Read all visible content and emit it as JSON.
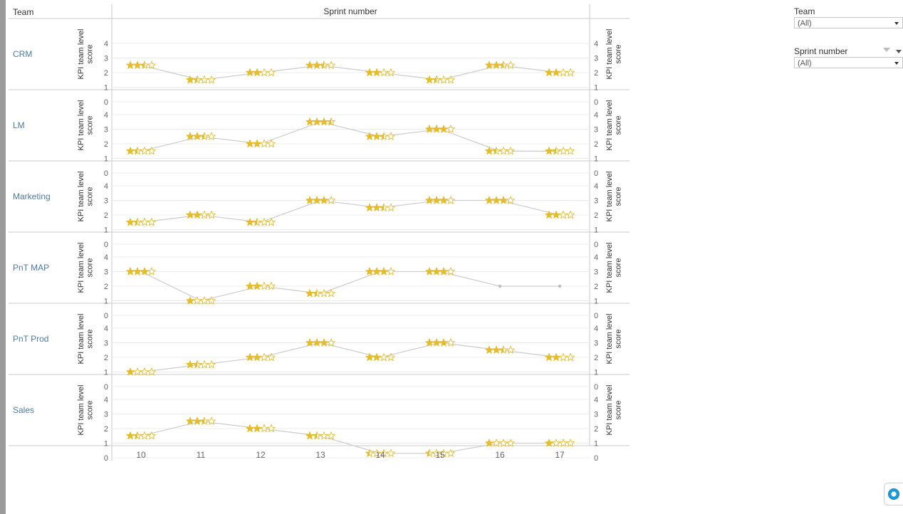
{
  "header": {
    "team_column": "Team",
    "sprint_column": "Sprint number"
  },
  "filters": {
    "team": {
      "title": "Team",
      "value": "(All)"
    },
    "sprint": {
      "title": "Sprint number",
      "value": "(All)"
    }
  },
  "icons": {
    "filter": "funnel-icon",
    "dropdown": "chevron-down-icon",
    "assistant": "assistant-icon"
  },
  "colors": {
    "star": "#e6bc2f",
    "line": "#cfcfcf",
    "team_label": "#4e79a7",
    "grid": "#ececec",
    "divider": "#c8c8c8"
  },
  "chart_data": {
    "type": "line",
    "mark": "star-rating",
    "max_stars": 4,
    "x": [
      10,
      11,
      12,
      13,
      14,
      15,
      16,
      17
    ],
    "xlabel": "Sprint number",
    "ylabel": "KPI team level score",
    "ylim": [
      0,
      4
    ],
    "yticks": [
      0,
      1,
      2,
      3,
      4
    ],
    "grid": true,
    "dual_axis": true,
    "series": [
      {
        "name": "CRM",
        "values": [
          2.5,
          1.5,
          2.0,
          2.5,
          2.0,
          1.5,
          2.5,
          2.0
        ]
      },
      {
        "name": "LM",
        "values": [
          1.5,
          2.5,
          2.0,
          3.5,
          2.5,
          3.0,
          1.5,
          1.5
        ]
      },
      {
        "name": "Marketing",
        "values": [
          1.5,
          2.0,
          1.5,
          3.0,
          2.5,
          3.0,
          3.0,
          2.0
        ]
      },
      {
        "name": "PnT MAP",
        "values": [
          3.0,
          1.0,
          2.0,
          1.5,
          3.0,
          3.0,
          2.0,
          2.0
        ],
        "stars_shown": [
          true,
          true,
          true,
          true,
          true,
          true,
          false,
          false
        ]
      },
      {
        "name": "PnT Prod",
        "values": [
          1.0,
          1.5,
          2.0,
          3.0,
          2.0,
          3.0,
          2.5,
          2.0
        ]
      },
      {
        "name": "Sales",
        "values": [
          1.5,
          2.5,
          2.0,
          1.5,
          0.3,
          0.3,
          1.0,
          1.0
        ]
      }
    ]
  }
}
